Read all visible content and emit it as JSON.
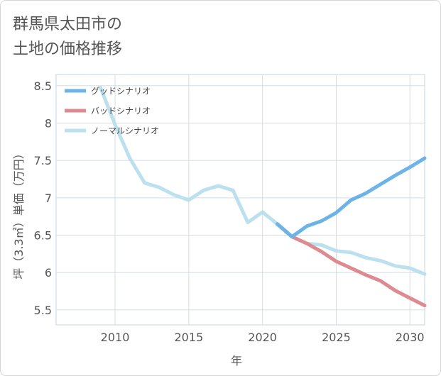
{
  "chart_data": {
    "type": "line",
    "title_lines": [
      "群馬県太田市の",
      "土地の価格推移"
    ],
    "xlabel": "年",
    "ylabel": "坪（3.3㎡）単価（万円）",
    "xlim": [
      2006,
      2031
    ],
    "ylim": [
      5.3,
      8.65
    ],
    "x_ticks": [
      2010,
      2015,
      2020,
      2025,
      2030
    ],
    "x_tick_labels": [
      "2010",
      "2015",
      "2020",
      "2025",
      "2030"
    ],
    "y_ticks": [
      5.5,
      6,
      6.5,
      7,
      7.5,
      8,
      8.5
    ],
    "y_tick_labels": [
      "5.5",
      "6",
      "6.5",
      "7",
      "7.5",
      "8",
      "8.5"
    ],
    "grid": true,
    "legend_position": "top-left",
    "series": [
      {
        "name": "グッドシナリオ",
        "color": "#6cb4e6",
        "x": [
          2021,
          2022,
          2023,
          2024,
          2025,
          2026,
          2027,
          2028,
          2029,
          2030,
          2031
        ],
        "values": [
          6.65,
          6.48,
          6.62,
          6.69,
          6.8,
          6.97,
          7.06,
          7.18,
          7.3,
          7.41,
          7.53
        ]
      },
      {
        "name": "バッドシナリオ",
        "color": "#dd8a90",
        "x": [
          2021,
          2022,
          2023,
          2024,
          2025,
          2026,
          2027,
          2028,
          2029,
          2030,
          2031
        ],
        "values": [
          6.65,
          6.48,
          6.39,
          6.28,
          6.15,
          6.06,
          5.97,
          5.89,
          5.76,
          5.66,
          5.56
        ]
      },
      {
        "name": "ノーマルシナリオ",
        "color": "#bde0ef",
        "x": [
          2009,
          2010,
          2011,
          2012,
          2013,
          2014,
          2015,
          2016,
          2017,
          2018,
          2019,
          2020,
          2021,
          2022,
          2023,
          2024,
          2025,
          2026,
          2027,
          2028,
          2029,
          2030,
          2031
        ],
        "values": [
          8.48,
          7.98,
          7.53,
          7.2,
          7.14,
          7.04,
          6.97,
          7.1,
          7.16,
          7.1,
          6.67,
          6.81,
          6.65,
          6.48,
          6.39,
          6.37,
          6.29,
          6.27,
          6.2,
          6.16,
          6.09,
          6.06,
          5.98
        ]
      }
    ]
  }
}
